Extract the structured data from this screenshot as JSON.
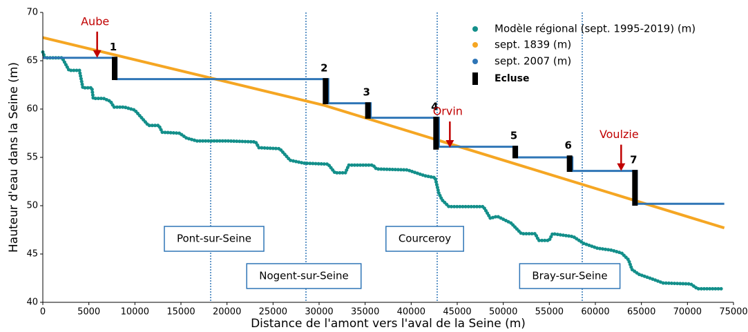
{
  "chart_data": {
    "type": "scatter",
    "xlabel": "Distance de l'amont vers l'aval de la Seine (m)",
    "ylabel": "Hauteur d'eau dans la Seine (m)",
    "xlim": [
      0,
      75000
    ],
    "ylim": [
      40,
      70
    ],
    "xticks": [
      0,
      5000,
      10000,
      15000,
      20000,
      25000,
      30000,
      35000,
      40000,
      45000,
      50000,
      55000,
      60000,
      65000,
      70000,
      75000
    ],
    "yticks": [
      40,
      45,
      50,
      55,
      60,
      65,
      70
    ],
    "legend": "upper right",
    "series": [
      {
        "name": "Modèle régional (sept. 1995-2019) (m)",
        "color": "#138f8a",
        "style": "dots",
        "x": [
          0,
          225,
          2100,
          2850,
          3975,
          4350,
          5325,
          5475,
          6600,
          7350,
          7725,
          8850,
          9975,
          10725,
          11475,
          12600,
          12975,
          14850,
          15600,
          16725,
          20100,
          23100,
          23475,
          25725,
          26850,
          28350,
          30975,
          31725,
          32850,
          33225,
          35850,
          36225,
          39600,
          41475,
          42600,
          43000,
          43350,
          44100,
          47850,
          48600,
          49350,
          50850,
          51975,
          53475,
          53850,
          54975,
          55350,
          57600,
          58725,
          60225,
          61725,
          62850,
          63600,
          63975,
          64725,
          66225,
          67350,
          70350,
          71100,
          73950
        ],
        "values": [
          65.9,
          65.3,
          65.3,
          64.0,
          64.0,
          62.2,
          62.2,
          61.1,
          61.1,
          60.8,
          60.2,
          60.2,
          59.9,
          59.1,
          58.3,
          58.3,
          57.6,
          57.5,
          57.0,
          56.7,
          56.7,
          56.6,
          56.0,
          55.9,
          54.7,
          54.4,
          54.3,
          53.4,
          53.4,
          54.2,
          54.2,
          53.8,
          53.7,
          53.1,
          52.9,
          51.3,
          50.6,
          49.9,
          49.9,
          48.7,
          48.9,
          48.2,
          47.1,
          47.1,
          46.4,
          46.4,
          47.1,
          46.8,
          46.1,
          45.6,
          45.4,
          45.1,
          44.4,
          43.4,
          42.9,
          42.4,
          42.0,
          41.9,
          41.4,
          41.4
        ]
      },
      {
        "name": "sept. 1839 (m)",
        "color": "#f5a623",
        "style": "line",
        "x": [
          0,
          30500,
          74000
        ],
        "values": [
          67.4,
          60.4,
          47.7
        ]
      },
      {
        "name": "sept. 2007 (m)",
        "color": "#2e75b6",
        "style": "step",
        "x": [
          0,
          8000,
          31000,
          35600,
          43000,
          51500,
          57500,
          64500,
          74000
        ],
        "values": [
          65.3,
          63.1,
          60.6,
          59.1,
          56.1,
          55.0,
          53.6,
          50.2,
          50.2
        ]
      }
    ],
    "locks": {
      "name": "Ecluse",
      "color": "#000000",
      "x": [
        7800,
        30700,
        35300,
        42700,
        51300,
        57200,
        64300
      ],
      "low": [
        63.0,
        60.5,
        59.0,
        55.8,
        54.9,
        53.5,
        50.0
      ],
      "high": [
        65.4,
        63.2,
        60.7,
        59.2,
        56.2,
        55.2,
        53.7
      ],
      "labels": [
        "1",
        "2",
        "3",
        "4",
        "5",
        "6",
        "7"
      ]
    },
    "vlines": [
      18225,
      28575,
      42825,
      58575
    ],
    "vline_color": "#2e75b6",
    "towns": [
      "Pont-sur-Seine",
      "Nogent-sur-Seine",
      "Courceroy",
      "Bray-sur-Seine"
    ],
    "annotations": [
      {
        "text": "Aube",
        "x": 5900,
        "y": 65.3,
        "color": "#c00000"
      },
      {
        "text": "Orvin",
        "x": 44200,
        "y": 56.0,
        "color": "#c00000"
      },
      {
        "text": "Voulzie",
        "x": 62800,
        "y": 53.6,
        "color": "#c00000"
      }
    ]
  }
}
